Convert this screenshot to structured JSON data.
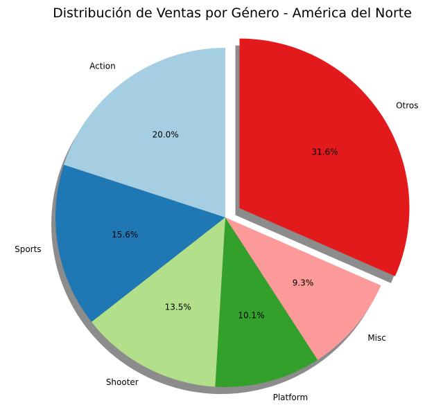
{
  "chart_data": {
    "type": "pie",
    "title": "Distribución de Ventas por Género - América del Norte",
    "start_angle_deg": 90,
    "direction": "counterclockwise",
    "shadow": true,
    "slices": [
      {
        "label": "Action",
        "value": 20.0,
        "pct_label": "20.0%",
        "color": "#a6cee3",
        "explode": 0
      },
      {
        "label": "Sports",
        "value": 15.6,
        "pct_label": "15.6%",
        "color": "#1f78b4",
        "explode": 0
      },
      {
        "label": "Shooter",
        "value": 13.5,
        "pct_label": "13.5%",
        "color": "#b2df8a",
        "explode": 0
      },
      {
        "label": "Platform",
        "value": 10.1,
        "pct_label": "10.1%",
        "color": "#33a02c",
        "explode": 0
      },
      {
        "label": "Misc",
        "value": 9.3,
        "pct_label": "9.3%",
        "color": "#fb9a99",
        "explode": 0
      },
      {
        "label": "Otros",
        "value": 31.6,
        "pct_label": "31.6%",
        "color": "#e31a1c",
        "explode": 0.1
      }
    ]
  }
}
